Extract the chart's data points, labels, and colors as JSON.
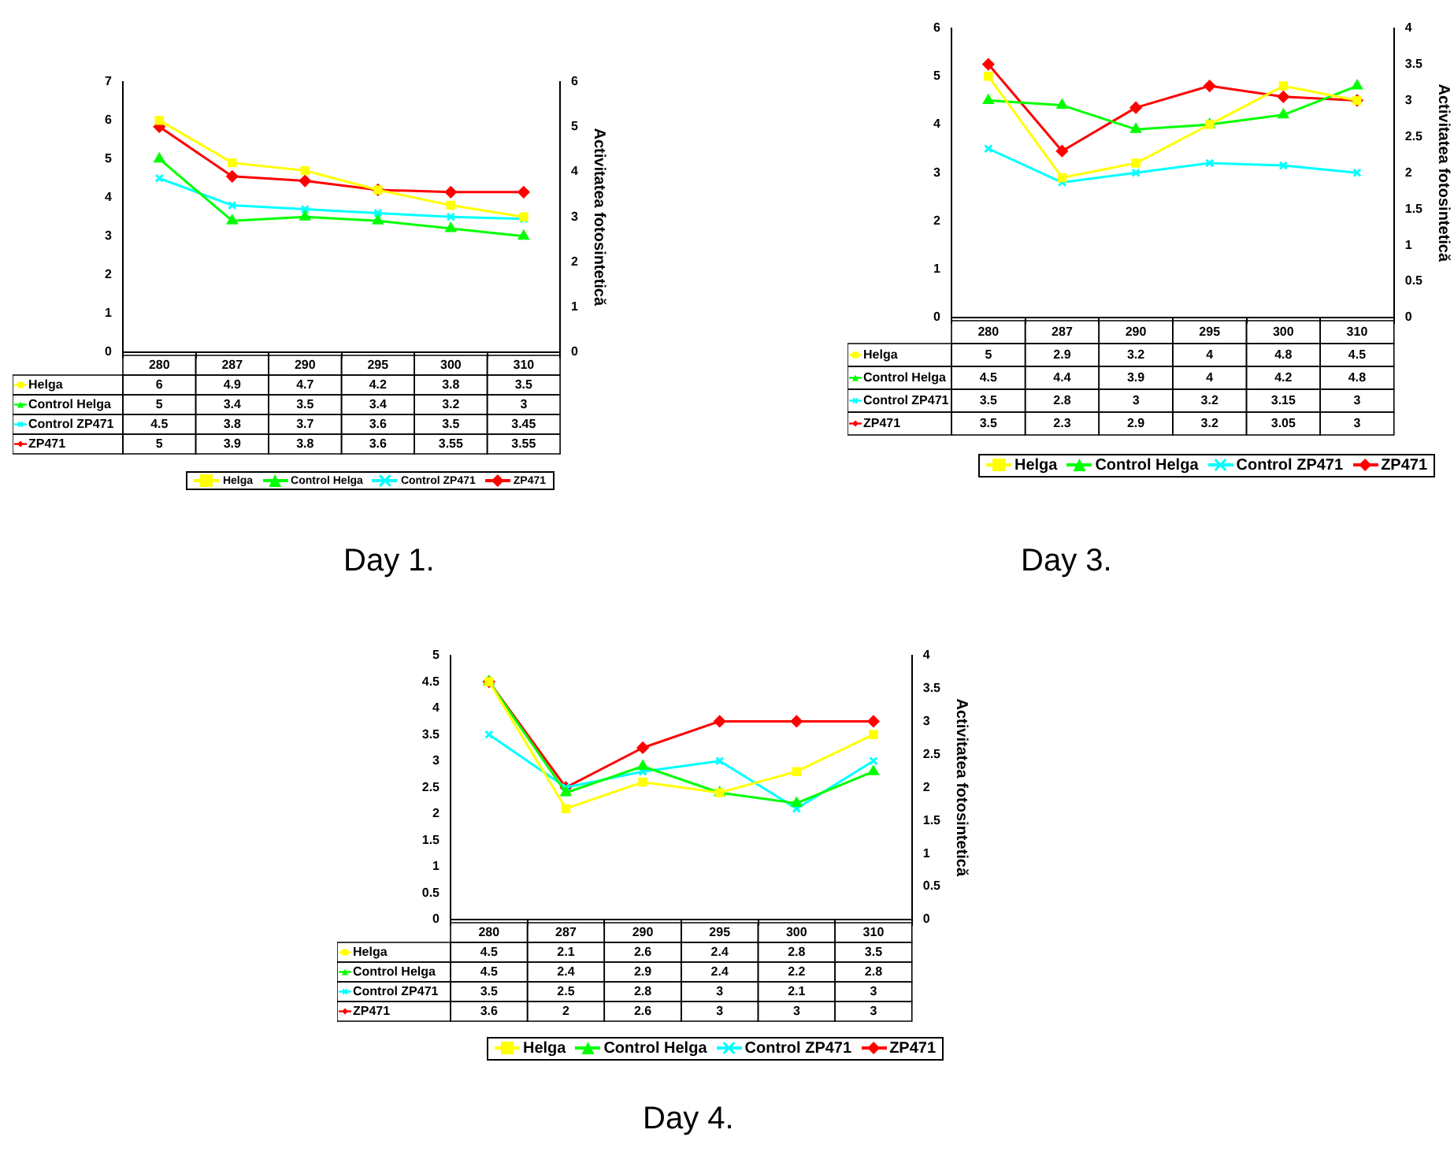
{
  "chart_data": [
    {
      "type": "line",
      "categories": [
        "280",
        "287",
        "290",
        "295",
        "300",
        "310"
      ],
      "y2label": "Activitatea fotosintetică",
      "ylim": [
        0,
        7
      ],
      "yticks": [
        0,
        1,
        2,
        3,
        4,
        5,
        6,
        7
      ],
      "y2lim": [
        0,
        6
      ],
      "y2ticks": [
        0,
        1,
        2,
        3,
        4,
        5,
        6
      ],
      "data_labels": true,
      "legend": "bottom",
      "annotations": [
        "Day 1."
      ],
      "series": [
        {
          "name": "Helga",
          "color": "#ffff00",
          "marker": "square",
          "values": [
            6,
            4.9,
            4.7,
            4.2,
            3.8,
            3.5
          ]
        },
        {
          "name": "Control Helga",
          "color": "#00ff00",
          "marker": "triangle",
          "values": [
            5,
            3.4,
            3.5,
            3.4,
            3.2,
            3
          ]
        },
        {
          "name": "Control ZP471",
          "color": "#00ffff",
          "marker": "cross",
          "values": [
            4.5,
            3.8,
            3.7,
            3.6,
            3.5,
            3.45
          ]
        },
        {
          "name": "ZP471",
          "color": "#ff0000",
          "marker": "diamond",
          "axis": "y2",
          "values": [
            5,
            3.9,
            3.8,
            3.6,
            3.55,
            3.55
          ]
        }
      ]
    },
    {
      "type": "line",
      "categories": [
        "280",
        "287",
        "290",
        "295",
        "300",
        "310"
      ],
      "y2label": "Activitatea fotosintetică",
      "ylim": [
        0,
        6
      ],
      "yticks": [
        0,
        1,
        2,
        3,
        4,
        5,
        6
      ],
      "y2lim": [
        0,
        4
      ],
      "y2ticks": [
        0,
        0.5,
        1,
        1.5,
        2,
        2.5,
        3,
        3.5,
        4
      ],
      "data_labels": true,
      "legend": "bottom",
      "annotations": [
        "Day 3."
      ],
      "series": [
        {
          "name": "Helga",
          "color": "#ffff00",
          "marker": "square",
          "values": [
            5,
            2.9,
            3.2,
            4,
            4.8,
            4.5
          ]
        },
        {
          "name": "Control Helga",
          "color": "#00ff00",
          "marker": "triangle",
          "values": [
            4.5,
            4.4,
            3.9,
            4,
            4.2,
            4.8
          ]
        },
        {
          "name": "Control ZP471",
          "color": "#00ffff",
          "marker": "cross",
          "values": [
            3.5,
            2.8,
            3,
            3.2,
            3.15,
            3
          ]
        },
        {
          "name": "ZP471",
          "color": "#ff0000",
          "marker": "diamond",
          "axis": "y2",
          "values": [
            3.5,
            2.3,
            2.9,
            3.2,
            3.05,
            3
          ]
        }
      ]
    },
    {
      "type": "line",
      "categories": [
        "280",
        "287",
        "290",
        "295",
        "300",
        "310"
      ],
      "y2label": "Activitatea fotosintetică",
      "ylim": [
        0,
        5
      ],
      "yticks": [
        0,
        0.5,
        1,
        1.5,
        2,
        2.5,
        3,
        3.5,
        4,
        4.5,
        5
      ],
      "y2lim": [
        0,
        4
      ],
      "y2ticks": [
        0,
        0.5,
        1,
        1.5,
        2,
        2.5,
        3,
        3.5,
        4
      ],
      "data_labels": true,
      "legend": "bottom",
      "annotations": [
        "Day 4."
      ],
      "series": [
        {
          "name": "Helga",
          "color": "#ffff00",
          "marker": "square",
          "values": [
            4.5,
            2.1,
            2.6,
            2.4,
            2.8,
            3.5
          ]
        },
        {
          "name": "Control Helga",
          "color": "#00ff00",
          "marker": "triangle",
          "values": [
            4.5,
            2.4,
            2.9,
            2.4,
            2.2,
            2.8
          ]
        },
        {
          "name": "Control ZP471",
          "color": "#00ffff",
          "marker": "cross",
          "values": [
            3.5,
            2.5,
            2.8,
            3,
            2.1,
            3
          ]
        },
        {
          "name": "ZP471",
          "color": "#ff0000",
          "marker": "diamond",
          "axis": "y2",
          "values": [
            3.6,
            2,
            2.6,
            3,
            3,
            3
          ]
        }
      ]
    }
  ]
}
